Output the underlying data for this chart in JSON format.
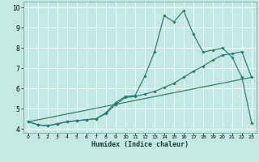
{
  "xlabel": "Humidex (Indice chaleur)",
  "bg_color": "#c5e8e4",
  "grid_color": "#b0d8d4",
  "line_color": "#2a7a70",
  "xlim": [
    -0.5,
    23.5
  ],
  "ylim": [
    3.8,
    10.3
  ],
  "xticks": [
    0,
    1,
    2,
    3,
    4,
    5,
    6,
    7,
    8,
    9,
    10,
    11,
    12,
    13,
    14,
    15,
    16,
    17,
    18,
    19,
    20,
    21,
    22,
    23
  ],
  "yticks": [
    4,
    5,
    6,
    7,
    8,
    9,
    10
  ],
  "line1_x": [
    0,
    1,
    2,
    3,
    4,
    5,
    6,
    7,
    8,
    9,
    10,
    11,
    12,
    13,
    14,
    15,
    16,
    17,
    18,
    19,
    20,
    21,
    22,
    23
  ],
  "line1_y": [
    4.35,
    4.2,
    4.15,
    4.25,
    4.35,
    4.4,
    4.45,
    4.5,
    4.8,
    5.3,
    5.6,
    5.65,
    6.6,
    7.8,
    9.6,
    9.3,
    9.85,
    8.7,
    7.8,
    7.9,
    8.0,
    7.55,
    6.55,
    4.3
  ],
  "line2_x": [
    0,
    1,
    2,
    3,
    4,
    5,
    6,
    7,
    8,
    9,
    10,
    11,
    12,
    13,
    14,
    15,
    16,
    17,
    18,
    19,
    20,
    21,
    22,
    23
  ],
  "line2_y": [
    4.35,
    4.2,
    4.15,
    4.25,
    4.35,
    4.4,
    4.45,
    4.5,
    4.75,
    5.2,
    5.55,
    5.6,
    5.72,
    5.85,
    6.05,
    6.25,
    6.55,
    6.85,
    7.1,
    7.4,
    7.65,
    7.72,
    7.82,
    6.55
  ],
  "line3_x": [
    0,
    23
  ],
  "line3_y": [
    4.35,
    6.55
  ]
}
